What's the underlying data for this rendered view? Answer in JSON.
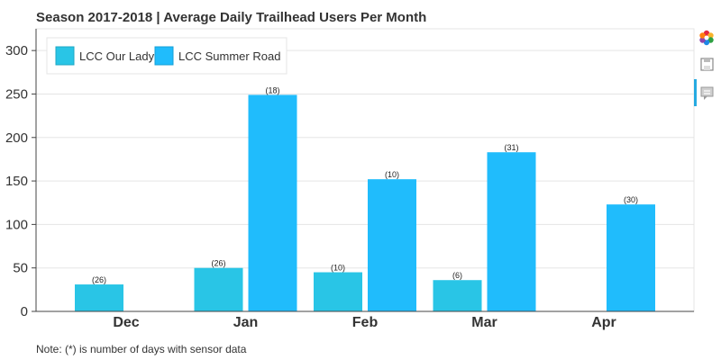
{
  "chart_data": {
    "type": "bar",
    "title": "Season 2017-2018 | Average Daily Trailhead Users Per Month",
    "xlabel": "",
    "ylabel": "",
    "categories": [
      "Dec",
      "Jan",
      "Feb",
      "Mar",
      "Apr"
    ],
    "ylim": [
      0,
      325
    ],
    "yticks": [
      0,
      50,
      100,
      150,
      200,
      250,
      300
    ],
    "grid": true,
    "legend_position": "top-left",
    "series": [
      {
        "name": "LCC Our Lady",
        "color": "#29c5e6",
        "values": [
          31,
          50,
          45,
          36,
          null
        ],
        "labels": [
          "(26)",
          "(26)",
          "(10)",
          "(6)",
          ""
        ]
      },
      {
        "name": "LCC Summer Road",
        "color": "#20bcfc",
        "values": [
          null,
          249,
          152,
          183,
          123
        ],
        "labels": [
          "",
          "(18)",
          "(10)",
          "(31)",
          "(30)"
        ]
      }
    ],
    "note": "Note: (*) is number of days with sensor data"
  },
  "toolbar": {
    "icons": [
      "bokeh-logo-icon",
      "save-icon",
      "hover-icon"
    ],
    "logo_colors": [
      "#e5263f",
      "#f8b32b",
      "#2ea043",
      "#1e88e5",
      "#8e44ad",
      "#ff7f0e"
    ]
  }
}
